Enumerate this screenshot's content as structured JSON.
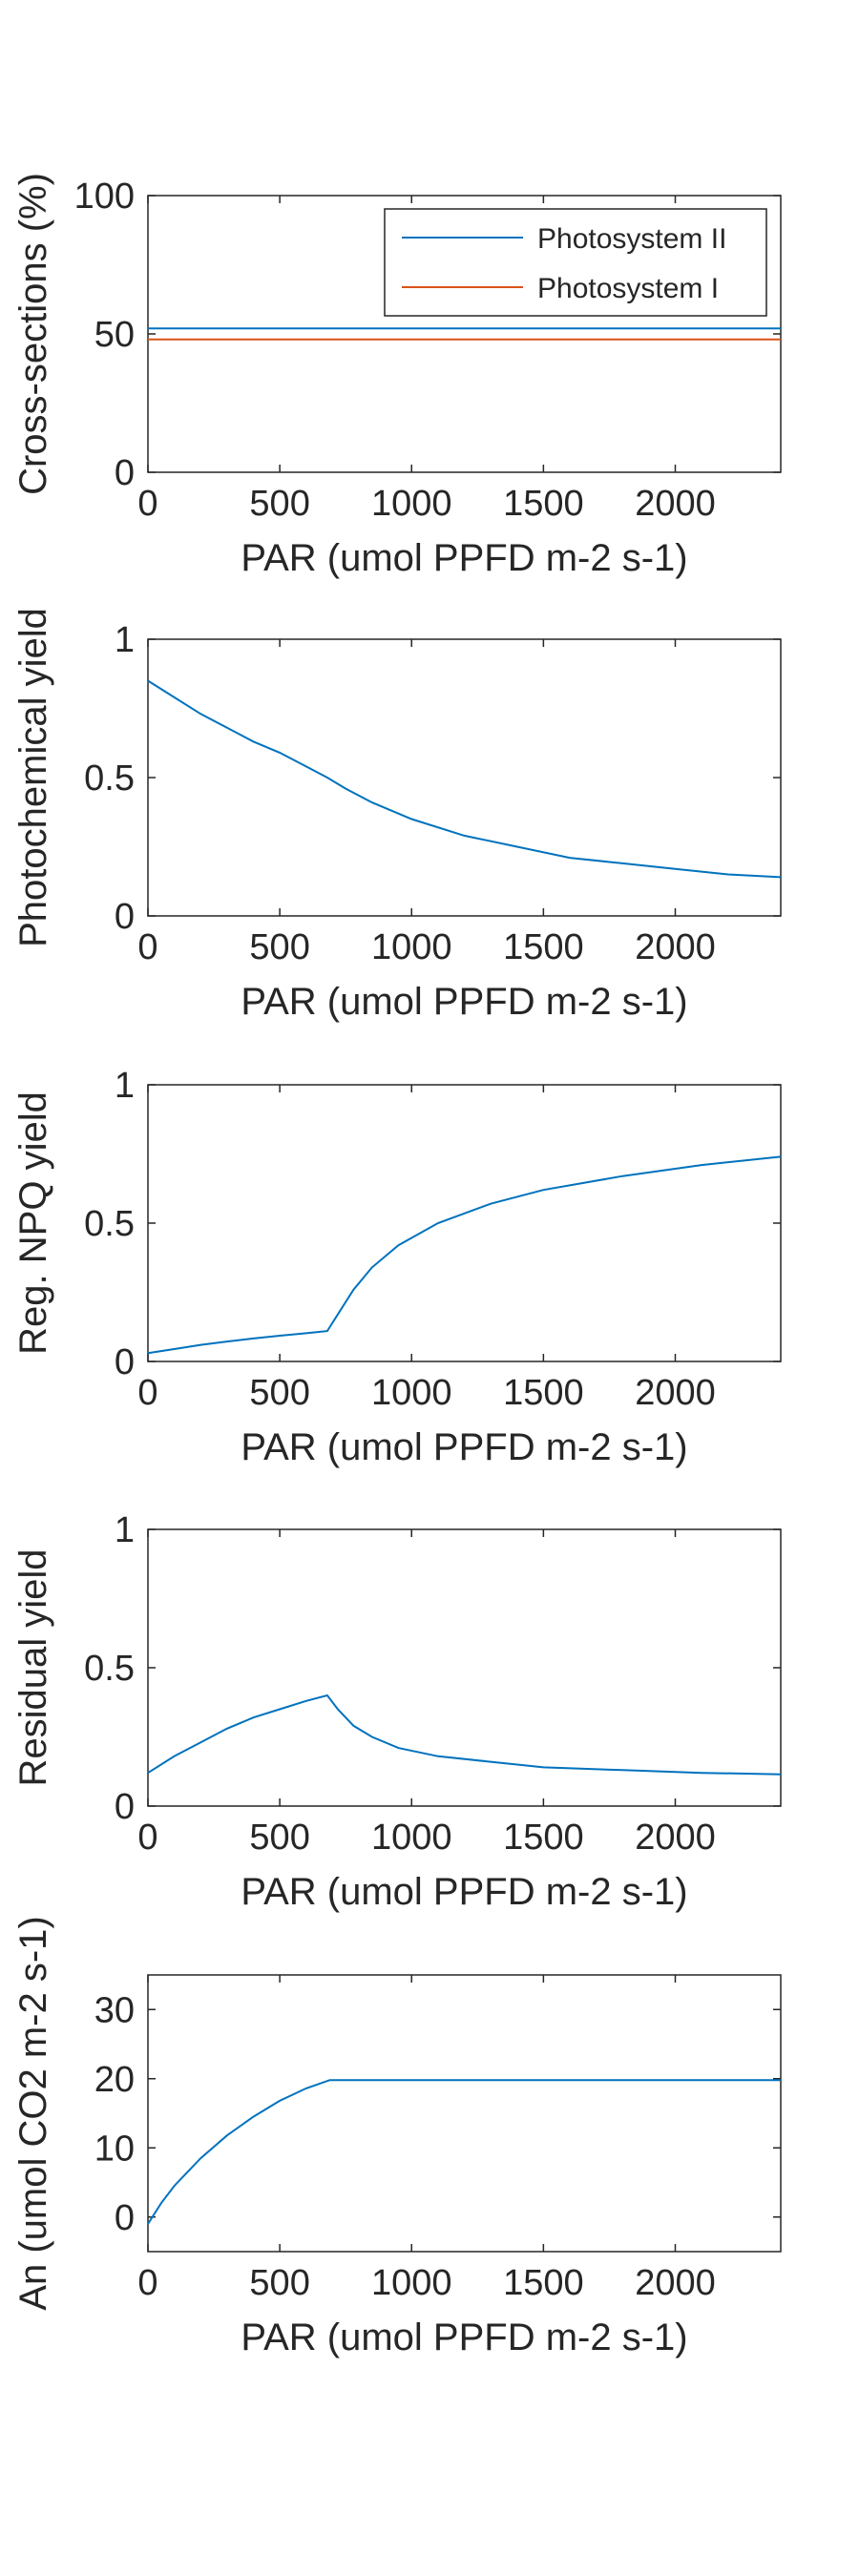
{
  "figure_title": "",
  "legend": {
    "entries": [
      {
        "label": "Photosystem II",
        "color": "#0072BD"
      },
      {
        "label": "Photosystem I",
        "color": "#D95319"
      }
    ],
    "placement": "top-right"
  },
  "chart_data": [
    {
      "type": "line",
      "title": "",
      "xlabel": "PAR (umol PPFD m-2 s-1)",
      "ylabel": "Cross-sections (%)",
      "xlim": [
        0,
        2400
      ],
      "ylim": [
        0,
        100
      ],
      "xticks": [
        0,
        500,
        1000,
        1500,
        2000
      ],
      "yticks": [
        0,
        50,
        100
      ],
      "grid": false,
      "legend": "top-right",
      "series": [
        {
          "name": "Photosystem II",
          "color": "#0072BD",
          "x": [
            0,
            2400
          ],
          "y": [
            52,
            52
          ]
        },
        {
          "name": "Photosystem I",
          "color": "#D95319",
          "x": [
            0,
            2400
          ],
          "y": [
            48,
            48
          ]
        }
      ]
    },
    {
      "type": "line",
      "title": "",
      "xlabel": "PAR (umol PPFD m-2 s-1)",
      "ylabel": "Photochemical yield",
      "xlim": [
        0,
        2400
      ],
      "ylim": [
        0,
        1
      ],
      "xticks": [
        0,
        500,
        1000,
        1500,
        2000
      ],
      "yticks": [
        0,
        0.5,
        1
      ],
      "grid": false,
      "series": [
        {
          "color": "#0072BD",
          "x": [
            0,
            100,
            200,
            300,
            400,
            500,
            600,
            680,
            750,
            850,
            1000,
            1200,
            1400,
            1600,
            1800,
            2000,
            2200,
            2400
          ],
          "y": [
            0.85,
            0.79,
            0.73,
            0.68,
            0.63,
            0.59,
            0.54,
            0.5,
            0.46,
            0.41,
            0.35,
            0.29,
            0.25,
            0.21,
            0.19,
            0.17,
            0.15,
            0.14
          ]
        }
      ]
    },
    {
      "type": "line",
      "title": "",
      "xlabel": "PAR (umol PPFD m-2 s-1)",
      "ylabel": "Reg. NPQ yield",
      "xlim": [
        0,
        2400
      ],
      "ylim": [
        0,
        1
      ],
      "xticks": [
        0,
        500,
        1000,
        1500,
        2000
      ],
      "yticks": [
        0,
        0.5,
        1
      ],
      "grid": false,
      "series": [
        {
          "color": "#0072BD",
          "x": [
            0,
            100,
            200,
            300,
            400,
            500,
            600,
            680,
            720,
            780,
            850,
            950,
            1100,
            1300,
            1500,
            1800,
            2100,
            2400
          ],
          "y": [
            0.03,
            0.045,
            0.06,
            0.072,
            0.083,
            0.093,
            0.102,
            0.11,
            0.17,
            0.26,
            0.34,
            0.42,
            0.5,
            0.57,
            0.62,
            0.67,
            0.71,
            0.74
          ]
        }
      ]
    },
    {
      "type": "line",
      "title": "",
      "xlabel": "PAR (umol PPFD m-2 s-1)",
      "ylabel": "Residual yield",
      "xlim": [
        0,
        2400
      ],
      "ylim": [
        0,
        1
      ],
      "xticks": [
        0,
        500,
        1000,
        1500,
        2000
      ],
      "yticks": [
        0,
        0.5,
        1
      ],
      "grid": false,
      "series": [
        {
          "color": "#0072BD",
          "x": [
            0,
            100,
            200,
            300,
            400,
            500,
            600,
            680,
            720,
            780,
            850,
            950,
            1100,
            1300,
            1500,
            1800,
            2100,
            2400
          ],
          "y": [
            0.12,
            0.18,
            0.23,
            0.28,
            0.32,
            0.35,
            0.38,
            0.4,
            0.35,
            0.29,
            0.25,
            0.21,
            0.18,
            0.16,
            0.14,
            0.13,
            0.12,
            0.115
          ]
        }
      ]
    },
    {
      "type": "line",
      "title": "",
      "xlabel": "PAR (umol PPFD m-2 s-1)",
      "ylabel": "An (umol CO2 m-2 s-1)",
      "xlim": [
        0,
        2400
      ],
      "ylim": [
        -5,
        35
      ],
      "xticks": [
        0,
        500,
        1000,
        1500,
        2000
      ],
      "yticks": [
        0,
        10,
        20,
        30
      ],
      "grid": false,
      "series": [
        {
          "color": "#0072BD",
          "x": [
            0,
            50,
            100,
            200,
            300,
            400,
            500,
            600,
            690,
            1000,
            1500,
            2000,
            2400
          ],
          "y": [
            -1,
            2,
            4.5,
            8.5,
            11.8,
            14.5,
            16.8,
            18.6,
            19.8,
            19.8,
            19.8,
            19.8,
            19.8
          ]
        }
      ]
    }
  ]
}
